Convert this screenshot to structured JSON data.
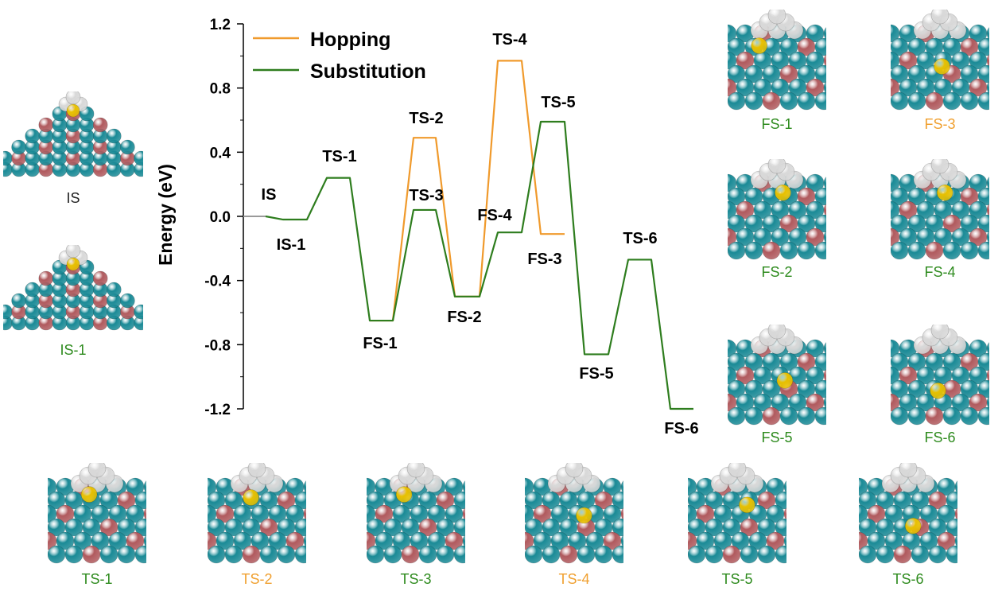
{
  "colors": {
    "hopping": "#f09a2c",
    "substitution": "#2e7d1e",
    "initial": "#9a9a9a",
    "atom_teal": "#1a8a96",
    "atom_red": "#b05a5e",
    "atom_white": "#d8d8d8",
    "atom_gold": "#e8c000",
    "caption_green": "#2e8b1e",
    "caption_orange": "#f0a030",
    "caption_black": "#222222"
  },
  "chart_data": {
    "type": "line",
    "title": "",
    "xlabel": "",
    "ylabel": "Energy (eV)",
    "ylim": [
      -1.2,
      1.2
    ],
    "yticks": [
      {
        "value": 1.2,
        "label": "1.2"
      },
      {
        "value": 0.8,
        "label": "0.8"
      },
      {
        "value": 0.4,
        "label": "0.4"
      },
      {
        "value": 0.0,
        "label": "0.0"
      },
      {
        "value": -0.4,
        "label": "-0.4"
      },
      {
        "value": -0.8,
        "label": "-0.8"
      },
      {
        "value": -1.2,
        "label": "-1.2"
      }
    ],
    "legend": {
      "position": "top-left",
      "entries": [
        {
          "name": "Hopping",
          "color_key": "hopping"
        },
        {
          "name": "Substitution",
          "color_key": "substitution"
        }
      ]
    },
    "initial_state": {
      "label": "IS",
      "value": 0.0
    },
    "series": [
      {
        "name": "Substitution",
        "color_key": "substitution",
        "points": [
          {
            "label": "IS-1",
            "value": -0.02
          },
          {
            "label": "TS-1",
            "value": 0.24
          },
          {
            "label": "FS-1",
            "value": -0.65
          },
          {
            "label": "TS-3",
            "value": 0.04
          },
          {
            "label": "FS-2",
            "value": -0.5
          },
          {
            "label": "FS-4",
            "value": -0.1
          },
          {
            "label": "TS-5",
            "value": 0.59
          },
          {
            "label": "FS-5",
            "value": -0.86
          },
          {
            "label": "TS-6",
            "value": -0.27
          },
          {
            "label": "FS-6",
            "value": -1.2
          }
        ]
      },
      {
        "name": "Hopping",
        "color_key": "hopping",
        "points": [
          {
            "label": "FS-1",
            "value": -0.65
          },
          {
            "label": "TS-2",
            "value": 0.49
          },
          {
            "label": "FS-2",
            "value": -0.5
          },
          {
            "label": "TS-4",
            "value": 0.97
          },
          {
            "label": "FS-3",
            "value": -0.11
          }
        ]
      }
    ]
  },
  "structure_images": {
    "left": [
      {
        "caption": "IS",
        "caption_color": "black"
      },
      {
        "caption": "IS-1",
        "caption_color": "green"
      }
    ],
    "right": [
      {
        "caption": "FS-1",
        "caption_color": "green"
      },
      {
        "caption": "FS-3",
        "caption_color": "orange"
      },
      {
        "caption": "FS-2",
        "caption_color": "green"
      },
      {
        "caption": "FS-4",
        "caption_color": "green"
      },
      {
        "caption": "FS-5",
        "caption_color": "green"
      },
      {
        "caption": "FS-6",
        "caption_color": "green"
      }
    ],
    "bottom": [
      {
        "caption": "TS-1",
        "caption_color": "green"
      },
      {
        "caption": "TS-2",
        "caption_color": "orange"
      },
      {
        "caption": "TS-3",
        "caption_color": "green"
      },
      {
        "caption": "TS-4",
        "caption_color": "orange"
      },
      {
        "caption": "TS-5",
        "caption_color": "green"
      },
      {
        "caption": "TS-6",
        "caption_color": "green"
      }
    ]
  }
}
